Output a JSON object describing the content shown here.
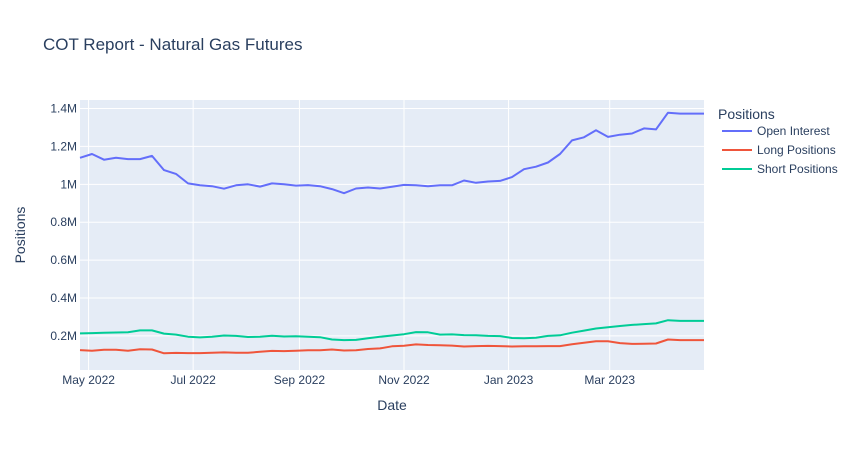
{
  "chart_data": {
    "type": "line",
    "title": "COT Report - Natural Gas Futures",
    "xlabel": "Date",
    "ylabel": "Positions",
    "legend_title": "Positions",
    "legend_position": "right",
    "x_ticks": [
      {
        "date": "2022-05-01",
        "label": "May 2022"
      },
      {
        "date": "2022-07-01",
        "label": "Jul 2022"
      },
      {
        "date": "2022-09-01",
        "label": "Sep 2022"
      },
      {
        "date": "2022-11-01",
        "label": "Nov 2022"
      },
      {
        "date": "2023-01-01",
        "label": "Jan 2023"
      },
      {
        "date": "2023-03-01",
        "label": "Mar 2023"
      }
    ],
    "y_ticks": [
      {
        "value": 200000,
        "label": "0.2M"
      },
      {
        "value": 400000,
        "label": "0.4M"
      },
      {
        "value": 600000,
        "label": "0.6M"
      },
      {
        "value": 800000,
        "label": "0.8M"
      },
      {
        "value": 1000000,
        "label": "1M"
      },
      {
        "value": 1200000,
        "label": "1.2M"
      },
      {
        "value": 1400000,
        "label": "1.4M"
      }
    ],
    "xlim": [
      "2022-04-26",
      "2023-04-25"
    ],
    "ylim": [
      20000,
      1445000
    ],
    "x": [
      "2022-04-26",
      "2022-05-03",
      "2022-05-10",
      "2022-05-17",
      "2022-05-24",
      "2022-05-31",
      "2022-06-07",
      "2022-06-14",
      "2022-06-21",
      "2022-06-28",
      "2022-07-05",
      "2022-07-12",
      "2022-07-19",
      "2022-07-26",
      "2022-08-02",
      "2022-08-09",
      "2022-08-16",
      "2022-08-23",
      "2022-08-30",
      "2022-09-06",
      "2022-09-13",
      "2022-09-20",
      "2022-09-27",
      "2022-10-04",
      "2022-10-11",
      "2022-10-18",
      "2022-10-25",
      "2022-11-01",
      "2022-11-08",
      "2022-11-15",
      "2022-11-22",
      "2022-11-29",
      "2022-12-06",
      "2022-12-13",
      "2022-12-20",
      "2022-12-27",
      "2023-01-03",
      "2023-01-10",
      "2023-01-17",
      "2023-01-24",
      "2023-01-31",
      "2023-02-07",
      "2023-02-14",
      "2023-02-21",
      "2023-02-28",
      "2023-03-07",
      "2023-03-14",
      "2023-03-21",
      "2023-03-28",
      "2023-04-04",
      "2023-04-11",
      "2023-04-18",
      "2023-04-25"
    ],
    "series": [
      {
        "name": "Open Interest",
        "color": "#636efa",
        "values": [
          1140000,
          1160000,
          1130000,
          1140000,
          1133000,
          1133000,
          1150000,
          1075000,
          1055000,
          1005000,
          995000,
          990000,
          977000,
          995000,
          1000000,
          988000,
          1005000,
          1000000,
          993000,
          996000,
          990000,
          975000,
          953000,
          978000,
          983000,
          978000,
          987000,
          997000,
          995000,
          990000,
          995000,
          995000,
          1020000,
          1008000,
          1015000,
          1018000,
          1038000,
          1080000,
          1093000,
          1115000,
          1160000,
          1232000,
          1248000,
          1285000,
          1250000,
          1262000,
          1268000,
          1295000,
          1290000,
          1378000,
          1373000,
          1373000,
          1373000
        ]
      },
      {
        "name": "Long Positions",
        "color": "#ef553b",
        "values": [
          125000,
          122000,
          127000,
          127000,
          122000,
          129000,
          128000,
          108000,
          110000,
          109000,
          109000,
          111000,
          113000,
          111000,
          111000,
          116000,
          121000,
          120000,
          122000,
          124000,
          124000,
          128000,
          123000,
          124000,
          131000,
          134000,
          145000,
          148000,
          155000,
          152000,
          151000,
          149000,
          144000,
          146000,
          147000,
          146000,
          144000,
          145000,
          145000,
          146000,
          146000,
          156000,
          164000,
          172000,
          172000,
          162000,
          158000,
          159000,
          160000,
          181000,
          178000,
          178000,
          178000
        ]
      },
      {
        "name": "Short Positions",
        "color": "#00cc96",
        "values": [
          213000,
          215000,
          217000,
          218000,
          219000,
          229000,
          229000,
          212000,
          207000,
          196000,
          192000,
          195000,
          202000,
          200000,
          194000,
          195000,
          201000,
          197000,
          198000,
          196000,
          193000,
          181000,
          178000,
          179000,
          188000,
          195000,
          202000,
          209000,
          220000,
          219000,
          207000,
          208000,
          204000,
          203000,
          200000,
          199000,
          189000,
          188000,
          190000,
          200000,
          203000,
          217000,
          228000,
          239000,
          246000,
          252000,
          258000,
          262000,
          266000,
          283000,
          279000,
          279000,
          279000
        ]
      }
    ]
  }
}
